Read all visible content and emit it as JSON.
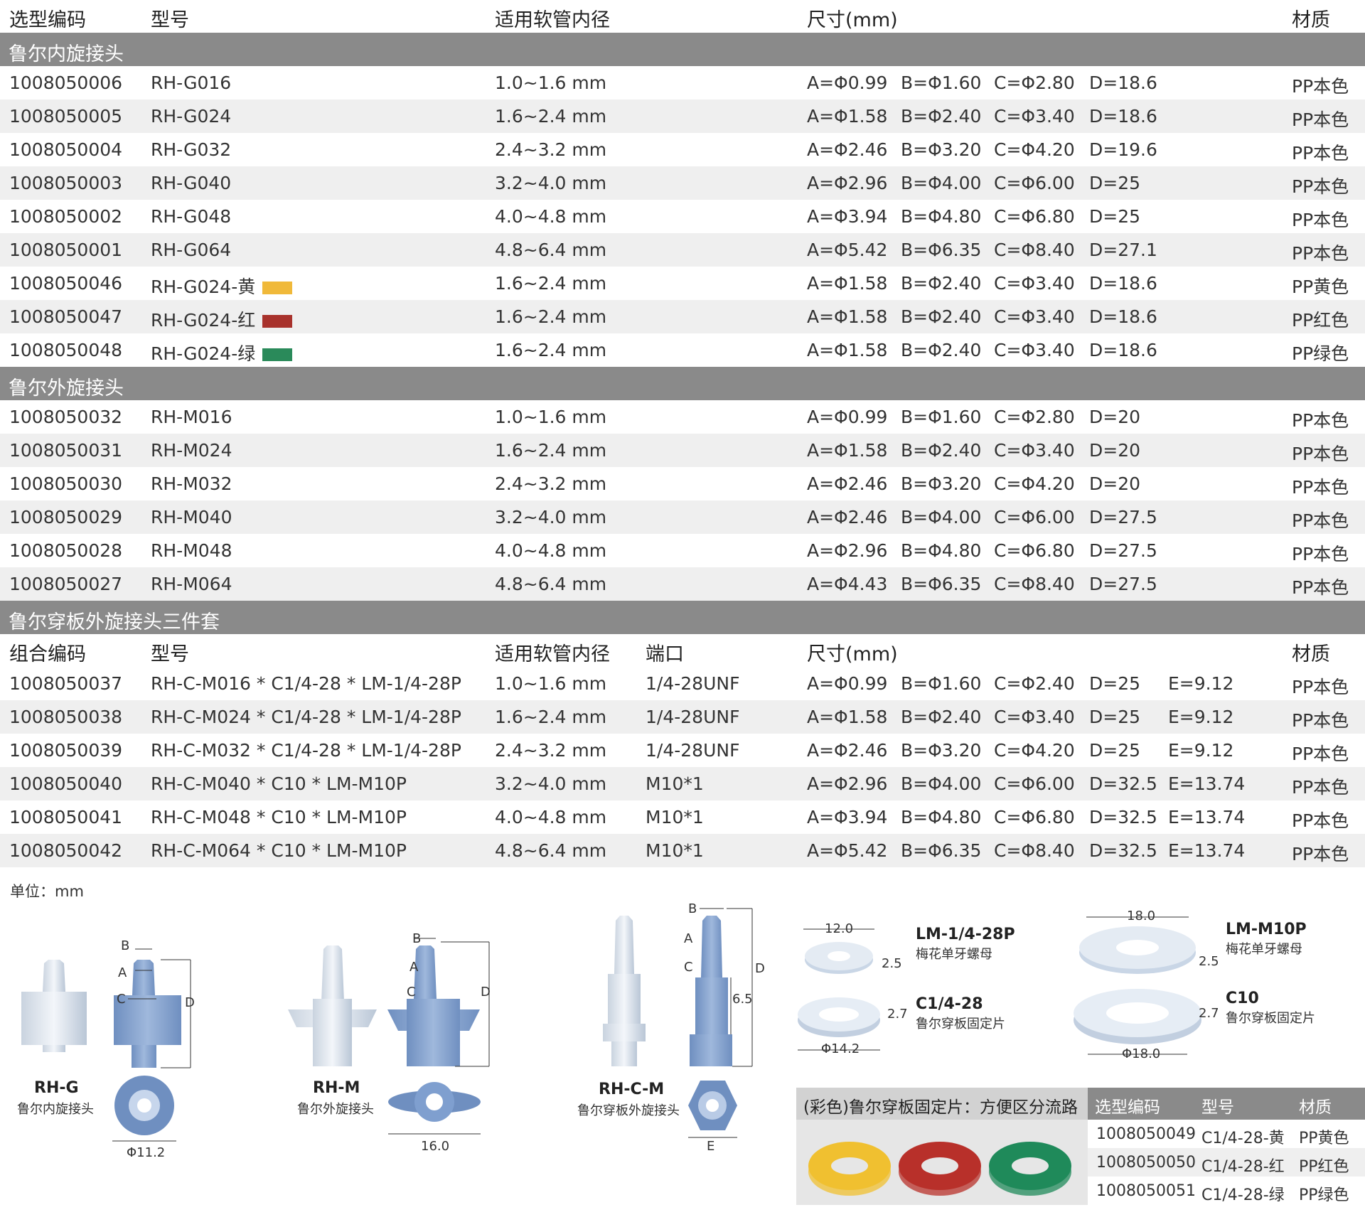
{
  "header": {
    "code": "选型编码",
    "model": "型号",
    "tube": "适用软管内径",
    "size": "尺寸(mm)",
    "material": "材质"
  },
  "sections": [
    {
      "title": "鲁尔内旋接头",
      "rows": [
        {
          "code": "1008050006",
          "model": "RH-G016",
          "tube": "1.0~1.6 mm",
          "a": "A=Φ0.99",
          "b": "B=Φ1.60",
          "c": "C=Φ2.80",
          "d": "D=18.6",
          "mat": "PP本色"
        },
        {
          "code": "1008050005",
          "model": "RH-G024",
          "tube": "1.6~2.4 mm",
          "a": "A=Φ1.58",
          "b": "B=Φ2.40",
          "c": "C=Φ3.40",
          "d": "D=18.6",
          "mat": "PP本色"
        },
        {
          "code": "1008050004",
          "model": "RH-G032",
          "tube": "2.4~3.2 mm",
          "a": "A=Φ2.46",
          "b": "B=Φ3.20",
          "c": "C=Φ4.20",
          "d": "D=19.6",
          "mat": "PP本色"
        },
        {
          "code": "1008050003",
          "model": "RH-G040",
          "tube": "3.2~4.0 mm",
          "a": "A=Φ2.96",
          "b": "B=Φ4.00",
          "c": "C=Φ6.00",
          "d": "D=25",
          "mat": "PP本色"
        },
        {
          "code": "1008050002",
          "model": "RH-G048",
          "tube": "4.0~4.8 mm",
          "a": "A=Φ3.94",
          "b": "B=Φ4.80",
          "c": "C=Φ6.80",
          "d": "D=25",
          "mat": "PP本色"
        },
        {
          "code": "1008050001",
          "model": "RH-G064",
          "tube": "4.8~6.4 mm",
          "a": "A=Φ5.42",
          "b": "B=Φ6.35",
          "c": "C=Φ8.40",
          "d": "D=27.1",
          "mat": "PP本色"
        },
        {
          "code": "1008050046",
          "model": "RH-G024-黄",
          "swatch": "#f0b93a",
          "tube": "1.6~2.4 mm",
          "a": "A=Φ1.58",
          "b": "B=Φ2.40",
          "c": "C=Φ3.40",
          "d": "D=18.6",
          "mat": "PP黄色"
        },
        {
          "code": "1008050047",
          "model": "RH-G024-红",
          "swatch": "#a8322c",
          "tube": "1.6~2.4 mm",
          "a": "A=Φ1.58",
          "b": "B=Φ2.40",
          "c": "C=Φ3.40",
          "d": "D=18.6",
          "mat": "PP红色"
        },
        {
          "code": "1008050048",
          "model": "RH-G024-绿",
          "swatch": "#2a8a5a",
          "tube": "1.6~2.4 mm",
          "a": "A=Φ1.58",
          "b": "B=Φ2.40",
          "c": "C=Φ3.40",
          "d": "D=18.6",
          "mat": "PP绿色"
        }
      ]
    },
    {
      "title": "鲁尔外旋接头",
      "rows": [
        {
          "code": "1008050032",
          "model": "RH-M016",
          "tube": "1.0~1.6 mm",
          "a": "A=Φ0.99",
          "b": "B=Φ1.60",
          "c": "C=Φ2.80",
          "d": "D=20",
          "mat": "PP本色"
        },
        {
          "code": "1008050031",
          "model": "RH-M024",
          "tube": "1.6~2.4 mm",
          "a": "A=Φ1.58",
          "b": "B=Φ2.40",
          "c": "C=Φ3.40",
          "d": "D=20",
          "mat": "PP本色"
        },
        {
          "code": "1008050030",
          "model": "RH-M032",
          "tube": "2.4~3.2 mm",
          "a": "A=Φ2.46",
          "b": "B=Φ3.20",
          "c": "C=Φ4.20",
          "d": "D=20",
          "mat": "PP本色"
        },
        {
          "code": "1008050029",
          "model": "RH-M040",
          "tube": "3.2~4.0 mm",
          "a": "A=Φ2.46",
          "b": "B=Φ4.00",
          "c": "C=Φ6.00",
          "d": "D=27.5",
          "mat": "PP本色"
        },
        {
          "code": "1008050028",
          "model": "RH-M048",
          "tube": "4.0~4.8 mm",
          "a": "A=Φ2.96",
          "b": "B=Φ4.80",
          "c": "C=Φ6.80",
          "d": "D=27.5",
          "mat": "PP本色"
        },
        {
          "code": "1008050027",
          "model": "RH-M064",
          "tube": "4.8~6.4 mm",
          "a": "A=Φ4.43",
          "b": "B=Φ6.35",
          "c": "C=Φ8.40",
          "d": "D=27.5",
          "mat": "PP本色"
        }
      ]
    },
    {
      "title": "鲁尔穿板外旋接头三件套",
      "header": {
        "code": "组合编码",
        "model": "型号",
        "tube": "适用软管内径",
        "port": "端口",
        "size": "尺寸(mm)",
        "material": "材质"
      },
      "rows": [
        {
          "code": "1008050037",
          "model": "RH-C-M016 * C1/4-28 * LM-1/4-28P",
          "tube": "1.0~1.6 mm",
          "port": "1/4-28UNF",
          "a": "A=Φ0.99",
          "b": "B=Φ1.60",
          "c": "C=Φ2.40",
          "d": "D=25",
          "e": "E=9.12",
          "mat": "PP本色"
        },
        {
          "code": "1008050038",
          "model": "RH-C-M024 * C1/4-28 * LM-1/4-28P",
          "tube": "1.6~2.4 mm",
          "port": "1/4-28UNF",
          "a": "A=Φ1.58",
          "b": "B=Φ2.40",
          "c": "C=Φ3.40",
          "d": "D=25",
          "e": "E=9.12",
          "mat": "PP本色"
        },
        {
          "code": "1008050039",
          "model": "RH-C-M032 * C1/4-28 * LM-1/4-28P",
          "tube": "2.4~3.2 mm",
          "port": "1/4-28UNF",
          "a": "A=Φ2.46",
          "b": "B=Φ3.20",
          "c": "C=Φ4.20",
          "d": "D=25",
          "e": "E=9.12",
          "mat": "PP本色"
        },
        {
          "code": "1008050040",
          "model": "RH-C-M040 * C10 * LM-M10P",
          "tube": "3.2~4.0 mm",
          "port": "M10*1",
          "a": "A=Φ2.96",
          "b": "B=Φ4.00",
          "c": "C=Φ6.00",
          "d": "D=32.5",
          "e": "E=13.74",
          "mat": "PP本色"
        },
        {
          "code": "1008050041",
          "model": "RH-C-M048 * C10 * LM-M10P",
          "tube": "4.0~4.8 mm",
          "port": "M10*1",
          "a": "A=Φ3.94",
          "b": "B=Φ4.80",
          "c": "C=Φ6.80",
          "d": "D=32.5",
          "e": "E=13.74",
          "mat": "PP本色"
        },
        {
          "code": "1008050042",
          "model": "RH-C-M064 * C10 * LM-M10P",
          "tube": "4.8~6.4 mm",
          "port": "M10*1",
          "a": "A=Φ5.42",
          "b": "B=Φ6.35",
          "c": "C=Φ8.40",
          "d": "D=32.5",
          "e": "E=13.74",
          "mat": "PP本色"
        }
      ]
    }
  ],
  "unit": "单位：mm",
  "diagrams": {
    "rhg": {
      "name": "RH-G",
      "desc": "鲁尔内旋接头",
      "dia": "Φ11.2"
    },
    "rhm": {
      "name": "RH-M",
      "desc": "鲁尔外旋接头",
      "dia": "16.0"
    },
    "rhcm": {
      "name": "RH-C-M",
      "desc": "鲁尔穿板外旋接头",
      "six": "6.5"
    },
    "letters": {
      "a": "A",
      "b": "B",
      "c": "C",
      "d": "D",
      "e": "E"
    },
    "lm14": {
      "name": "LM-1/4-28P",
      "desc": "梅花单牙螺母",
      "w": "12.0",
      "t": "2.5"
    },
    "c14": {
      "name": "C1/4-28",
      "desc": "鲁尔穿板固定片",
      "w": "Φ14.2",
      "t": "2.7"
    },
    "lmm10": {
      "name": "LM-M10P",
      "desc": "梅花单牙螺母",
      "w": "18.0",
      "t": "2.5"
    },
    "c10": {
      "name": "C10",
      "desc": "鲁尔穿板固定片",
      "w": "Φ18.0",
      "t": "2.7"
    }
  },
  "colored": {
    "title": "(彩色)鲁尔穿板固定片：方便区分流路",
    "header": {
      "code": "选型编码",
      "model": "型号",
      "material": "材质"
    },
    "rows": [
      {
        "code": "1008050049",
        "model": "C1/4-28-黄",
        "mat": "PP黄色",
        "color": "#f0c030"
      },
      {
        "code": "1008050050",
        "model": "C1/4-28-红",
        "mat": "PP红色",
        "color": "#b8302a"
      },
      {
        "code": "1008050051",
        "model": "C1/4-28-绿",
        "mat": "PP绿色",
        "color": "#1f8a5a"
      }
    ]
  }
}
